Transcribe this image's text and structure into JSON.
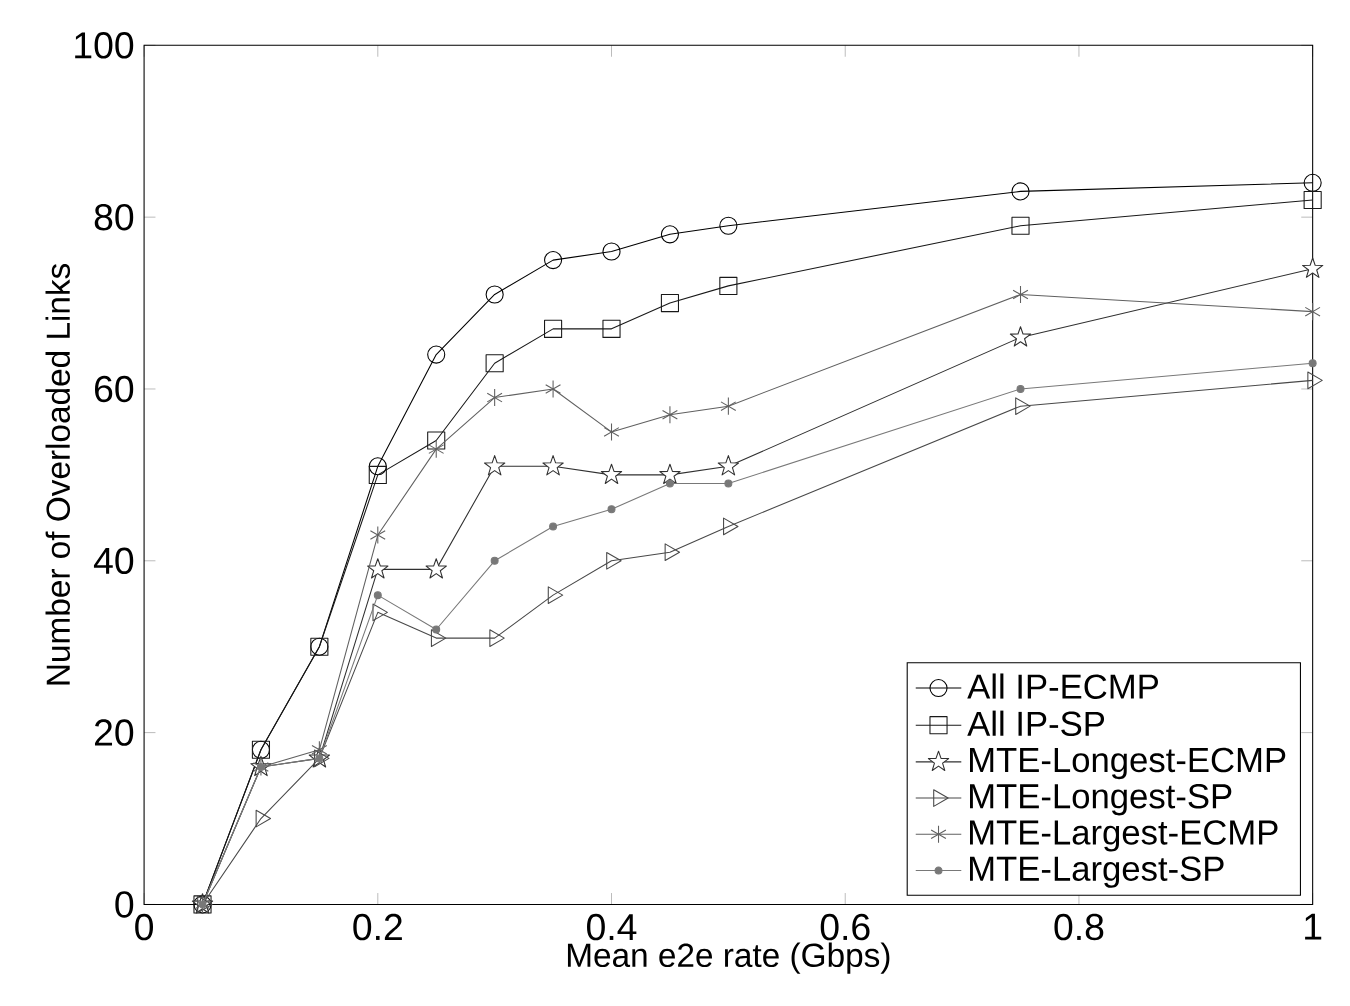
{
  "chart_data": {
    "type": "line",
    "xlabel": "Mean e2e rate (Gbps)",
    "ylabel": "Number of Overloaded Links",
    "x": [
      0.05,
      0.1,
      0.15,
      0.2,
      0.25,
      0.3,
      0.35,
      0.4,
      0.45,
      0.5,
      0.75,
      1
    ],
    "series": [
      {
        "name": "All IP-ECMP",
        "color": "#000000",
        "marker": "circle",
        "values": [
          0,
          18,
          30,
          51,
          64,
          71,
          75,
          76,
          78,
          79,
          83,
          84
        ]
      },
      {
        "name": "All IP-SP",
        "color": "#181818",
        "marker": "square",
        "values": [
          0,
          18,
          30,
          50,
          54,
          63,
          67,
          67,
          70,
          72,
          79,
          82
        ]
      },
      {
        "name": "MTE-Longest-ECMP",
        "color": "#303030",
        "marker": "star",
        "values": [
          0,
          16,
          17,
          39,
          39,
          51,
          51,
          50,
          50,
          51,
          66,
          74
        ]
      },
      {
        "name": "MTE-Longest-SP",
        "color": "#484848",
        "marker": "triangle",
        "values": [
          0,
          10,
          17,
          34,
          31,
          31,
          36,
          40,
          41,
          44,
          58,
          61
        ]
      },
      {
        "name": "MTE-Largest-ECMP",
        "color": "#606060",
        "marker": "cross",
        "values": [
          0,
          16,
          18,
          43,
          53,
          59,
          60,
          55,
          57,
          58,
          71,
          69
        ]
      },
      {
        "name": "MTE-Largest-SP",
        "color": "#787878",
        "marker": "dot",
        "values": [
          0,
          16,
          17,
          36,
          32,
          40,
          44,
          46,
          49,
          49,
          60,
          63
        ]
      }
    ],
    "xlim": [
      0,
      1
    ],
    "ylim": [
      0,
      100
    ],
    "xticks": [
      0,
      0.2,
      0.4,
      0.6,
      0.8,
      1
    ],
    "yticks": [
      0,
      20,
      40,
      60,
      80,
      100
    ],
    "legend": "bottom right",
    "line_style": "solid",
    "grid": false
  }
}
